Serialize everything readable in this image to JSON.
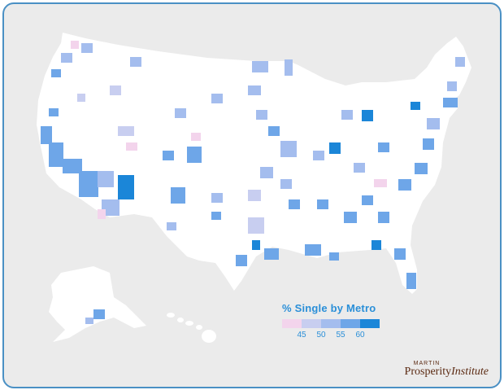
{
  "legend": {
    "title": "% Single by Metro",
    "bins": [
      "#f3d4ec",
      "#c8cef0",
      "#a4bdee",
      "#6ea6e8",
      "#1b86d8"
    ],
    "ticks": [
      "45",
      "50",
      "55",
      "60"
    ]
  },
  "logo": {
    "line1": "MARTIN",
    "line2a": "Prosperity",
    "line2b": "Institute"
  },
  "colors": {
    "frame_border": "#4a90c4",
    "background": "#ebebeb",
    "land": "#ffffff"
  }
}
